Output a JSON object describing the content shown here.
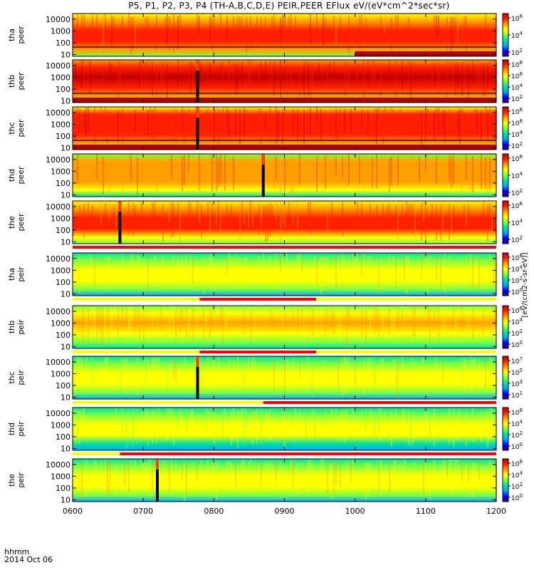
{
  "title": "P5, P1, P2, P3, P4 (TH-A,B,C,D,E) PEIR,PEER EFlux eV/(eV*cm^2*sec*sr)",
  "footer": {
    "time_label": "hhmm",
    "date_label": "2014 Oct 06"
  },
  "colorbar_unit_label": "[eV/(cm2-s-sr-eV)]",
  "colors": {
    "spectrum": [
      "#3a0070",
      "#0000ff",
      "#00a8ff",
      "#00e0a0",
      "#80ff40",
      "#ffff00",
      "#ffa000",
      "#ff2000",
      "#c00000"
    ],
    "bar_red": "#ff0000",
    "bar_yellow": "#ffff00"
  },
  "chart_data": {
    "type": "heatmap",
    "description_axes": "time vs energy",
    "x": {
      "label": "hhmm",
      "range": [
        600,
        1200
      ],
      "tick_labels": [
        "0600",
        "0700",
        "0800",
        "0900",
        "1000",
        "1100",
        "1200"
      ],
      "ticks": [
        600,
        700,
        800,
        900,
        1000,
        1100,
        1200
      ]
    },
    "y": {
      "scale": "log",
      "range": [
        7,
        30000
      ],
      "tick_labels": [
        "10",
        "100",
        "1000",
        "10000"
      ],
      "ticks": [
        10,
        100,
        1000,
        10000
      ]
    },
    "panels": [
      {
        "label1": "tha",
        "label2": "peer",
        "cb_ticks": [
          "10^2",
          "10^4",
          "10^6"
        ],
        "level": 0.85,
        "dark_bottom_from": 1000,
        "spike": null
      },
      {
        "label1": "thb",
        "label2": "peer",
        "cb_ticks": [
          "10^2",
          "10^4",
          "10^6",
          "10^8"
        ],
        "level": 0.92,
        "dark_bottom_from": 600,
        "spike": 777
      },
      {
        "label1": "thc",
        "label2": "peer",
        "cb_ticks": [
          "10^2",
          "10^4",
          "10^6",
          "10^8"
        ],
        "level": 0.9,
        "dark_bottom_from": 600,
        "spike": 777
      },
      {
        "label1": "thd",
        "label2": "peer",
        "cb_ticks": [
          "10^2",
          "10^4",
          "10^6"
        ],
        "level": 0.78,
        "dark_bottom_from": null,
        "spike": 870
      },
      {
        "label1": "the",
        "label2": "peer",
        "cb_ticks": [
          "10^2",
          "10^4",
          "10^6"
        ],
        "level": 0.82,
        "dark_bottom_from": null,
        "spike": 667
      },
      {
        "label1": "tha",
        "label2": "peir",
        "cb_ticks": [
          "10^0",
          "10^2",
          "10^4",
          "10^6"
        ],
        "level": 0.62,
        "dark_bottom_from": null,
        "spike": null
      },
      {
        "label1": "thb",
        "label2": "peir",
        "cb_ticks": [
          "10^0",
          "10^2",
          "10^4",
          "10^6"
        ],
        "level": 0.68,
        "dark_bottom_from": null,
        "spike": null
      },
      {
        "label1": "thc",
        "label2": "peir",
        "cb_ticks": [
          "10^1",
          "10^3",
          "10^5",
          "10^7"
        ],
        "level": 0.6,
        "dark_bottom_from": null,
        "spike": 777
      },
      {
        "label1": "thd",
        "label2": "peir",
        "cb_ticks": [
          "10^0",
          "10^2",
          "10^4",
          "10^6"
        ],
        "level": 0.58,
        "dark_bottom_from": null,
        "spike": null
      },
      {
        "label1": "the",
        "label2": "peir",
        "cb_ticks": [
          "10^0",
          "10^2",
          "10^4",
          "10^6"
        ],
        "level": 0.62,
        "dark_bottom_from": null,
        "spike": 720
      }
    ],
    "mode_bars": [
      {
        "after_panel": 4,
        "segments": [
          {
            "from": 600,
            "to": 1200,
            "color": "red"
          }
        ]
      },
      {
        "after_panel": 5,
        "segments": [
          {
            "from": 600,
            "to": 780,
            "color": "yellow"
          },
          {
            "from": 780,
            "to": 945,
            "color": "red"
          },
          {
            "from": 945,
            "to": 1200,
            "color": "yellow"
          }
        ]
      },
      {
        "after_panel": 6,
        "segments": [
          {
            "from": 600,
            "to": 780,
            "color": "yellow"
          },
          {
            "from": 780,
            "to": 945,
            "color": "red"
          },
          {
            "from": 945,
            "to": 1200,
            "color": "yellow"
          }
        ]
      },
      {
        "after_panel": 7,
        "segments": [
          {
            "from": 600,
            "to": 870,
            "color": "yellow"
          },
          {
            "from": 870,
            "to": 1200,
            "color": "red"
          }
        ]
      },
      {
        "after_panel": 8,
        "segments": [
          {
            "from": 600,
            "to": 667,
            "color": "yellow"
          },
          {
            "from": 667,
            "to": 1200,
            "color": "red"
          }
        ]
      }
    ]
  }
}
